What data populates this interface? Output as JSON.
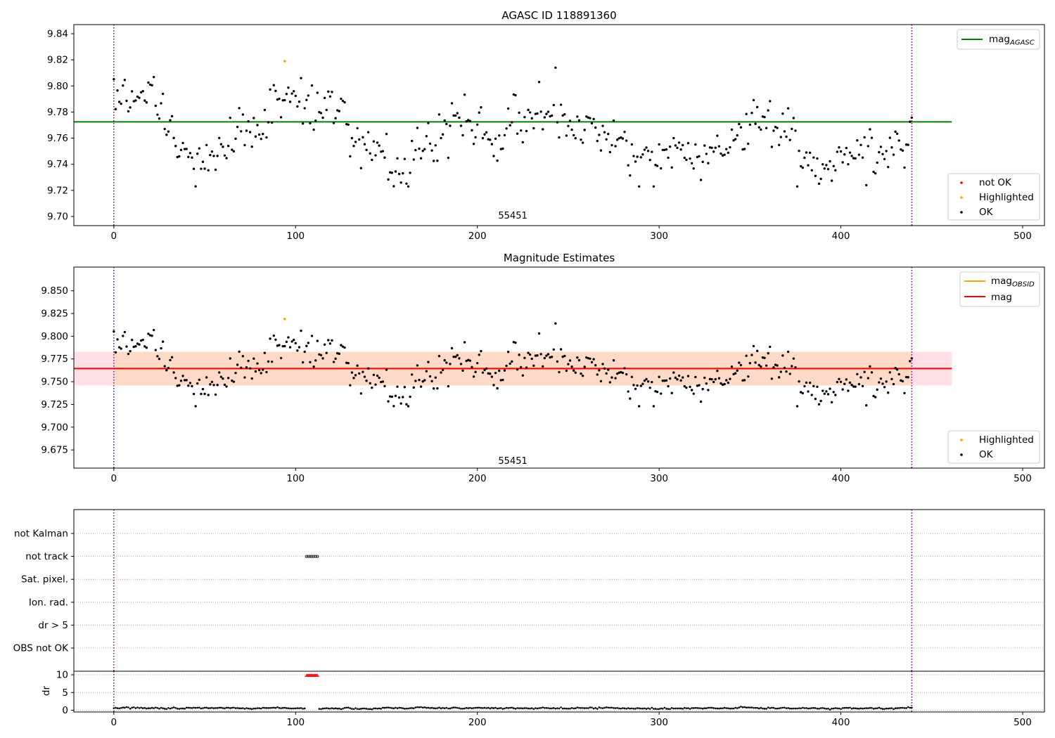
{
  "colors": {
    "ok": "#000000",
    "highlighted": "#ffa500",
    "not_ok": "#ff0000",
    "agasc_line": "#008000",
    "mag_line": "#ff0000",
    "obsid_line": "#ffa500",
    "band_inner": "#ffdac8",
    "band_outer": "#ffe0e6",
    "obs_boundary": "#800080",
    "grid": "#b0b0b0"
  },
  "chart_data": [
    {
      "type": "scatter",
      "title": "AGASC ID 118891360",
      "xlim": [
        -22,
        512
      ],
      "ylim": [
        9.693,
        9.847
      ],
      "x_ticks": [
        0,
        100,
        200,
        300,
        400,
        500
      ],
      "y_ticks": [
        9.7,
        9.72,
        9.74,
        9.76,
        9.78,
        9.8,
        9.82,
        9.84
      ],
      "y_tick_labels": [
        "9.70",
        "9.72",
        "9.74",
        "9.76",
        "9.78",
        "9.80",
        "9.82",
        "9.84"
      ],
      "obs_boundaries": [
        0,
        439
      ],
      "annotation": {
        "text": "55451",
        "x": 219.5,
        "y": 9.701
      },
      "reference_lines": [
        {
          "label": "mag",
          "label_sub": "AGASC",
          "y": 9.7725,
          "x_range": [
            -22,
            461
          ]
        }
      ],
      "legend_lines_position": "upper right",
      "legend_points_position": "lower right",
      "legend_points": [
        {
          "label": "not OK",
          "color": "#ff0000"
        },
        {
          "label": "Highlighted",
          "color": "#ffa500"
        },
        {
          "label": "OK",
          "color": "#000000"
        }
      ],
      "series": [
        {
          "name": "OK",
          "count": 440,
          "x_range": [
            0,
            439
          ],
          "y_range": [
            9.723,
            9.814
          ],
          "mean": 9.7644,
          "std": 0.0185,
          "outliers_high": [
            {
              "x": 243,
              "y": 9.814
            },
            {
              "x": 103,
              "y": 9.806
            },
            {
              "x": 234,
              "y": 9.803
            }
          ],
          "outliers_low": [
            {
              "x": 376,
              "y": 9.723
            },
            {
              "x": 414,
              "y": 9.724
            },
            {
              "x": 158,
              "y": 9.726
            }
          ]
        },
        {
          "name": "Highlighted",
          "points": [
            {
              "x": 94,
              "y": 9.819
            }
          ]
        }
      ]
    },
    {
      "type": "scatter",
      "title": "Magnitude Estimates",
      "xlim": [
        -22,
        512
      ],
      "ylim": [
        9.655,
        9.876
      ],
      "x_ticks": [
        0,
        100,
        200,
        300,
        400,
        500
      ],
      "y_ticks": [
        9.675,
        9.7,
        9.725,
        9.75,
        9.775,
        9.8,
        9.825,
        9.85
      ],
      "y_tick_labels": [
        "9.675",
        "9.700",
        "9.725",
        "9.750",
        "9.775",
        "9.800",
        "9.825",
        "9.850"
      ],
      "obs_boundaries": [
        0,
        439
      ],
      "annotation": {
        "text": "55451",
        "x": 219.5,
        "y": 9.6635
      },
      "reference_lines": [
        {
          "label": "mag",
          "label_sub": "OBSID",
          "y": 9.7644,
          "x_range": [
            0,
            439
          ],
          "band": [
            9.7459,
            9.7829
          ]
        },
        {
          "label": "mag",
          "label_sub": "",
          "y": 9.7644,
          "x_range": [
            -22,
            461
          ],
          "band": [
            9.7459,
            9.7829
          ]
        }
      ],
      "legend_lines_position": "upper right",
      "legend_points_position": "lower right",
      "legend_points": [
        {
          "label": "Highlighted",
          "color": "#ffa500"
        },
        {
          "label": "OK",
          "color": "#000000"
        }
      ],
      "series": [
        {
          "name": "OK",
          "same_as_panel": 0
        },
        {
          "name": "Highlighted",
          "points": [
            {
              "x": 94,
              "y": 9.819
            }
          ]
        }
      ]
    },
    {
      "type": "scatter",
      "title": "",
      "xlim": [
        -22,
        512
      ],
      "categories": [
        "not Kalman",
        "not track",
        "Sat. pixel.",
        "Ion. rad.",
        "dr > 5",
        "OBS not OK"
      ],
      "flag_points": [
        {
          "category": "not track",
          "x_range": [
            106,
            112
          ]
        }
      ],
      "obs_boundaries": [
        0,
        439
      ]
    },
    {
      "type": "scatter",
      "title": "",
      "ylabel": "dr",
      "xlim": [
        -22,
        512
      ],
      "ylim": [
        -0.5,
        11
      ],
      "x_ticks": [
        0,
        100,
        200,
        300,
        400,
        500
      ],
      "y_ticks": [
        0,
        5,
        10
      ],
      "y_tick_labels": [
        "0",
        "5",
        "10"
      ],
      "obs_boundaries": [
        0,
        439
      ],
      "series": [
        {
          "name": "OK",
          "count": 440,
          "x_range": [
            0,
            439
          ],
          "y_range": [
            0.05,
            1.45
          ]
        },
        {
          "name": "not OK",
          "x_range": [
            106,
            112
          ],
          "y": 9.8
        }
      ]
    }
  ]
}
